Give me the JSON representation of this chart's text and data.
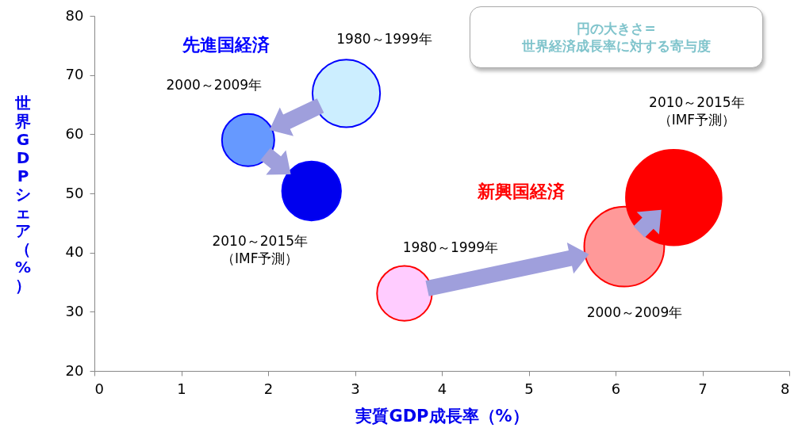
{
  "chart_data": {
    "type": "bubble",
    "xlabel": "実質GDP成長率（%）",
    "ylabel": "世界GDPシェア（%）",
    "xlim": [
      0,
      8
    ],
    "xticks": [
      0,
      1,
      2,
      3,
      4,
      5,
      6,
      7,
      8
    ],
    "ylim": [
      20,
      80
    ],
    "yticks": [
      20,
      30,
      40,
      50,
      60,
      70,
      80
    ],
    "grid": false,
    "series": [
      {
        "name": "先進国経済",
        "color": "#0000ff",
        "x": [
          2.9,
          1.77,
          2.5
        ],
        "values": [
          66.9,
          59.0,
          50.4
        ],
        "sizes": [
          0.5,
          0.3,
          0.38
        ],
        "colors": [
          "#cceeff",
          "#6699ff",
          "#0000ee"
        ]
      },
      {
        "name": "新興国経済",
        "color": "#ff0000",
        "x": [
          3.57,
          6.1,
          6.67
        ],
        "values": [
          33.1,
          41.0,
          49.3
        ],
        "sizes": [
          0.33,
          0.7,
          1
        ],
        "colors": [
          "#ffccff",
          "#ff9999",
          "#ff0000"
        ]
      }
    ],
    "annotations": [
      "円の大きさ=\n世界経済成長率に対する寄与度",
      "1980～1999年",
      "2000～2009年",
      "2010～2015年（IMF予測）",
      "1980～1999年",
      "2000～2009年",
      "2010～2015年（IMF予測）"
    ]
  }
}
